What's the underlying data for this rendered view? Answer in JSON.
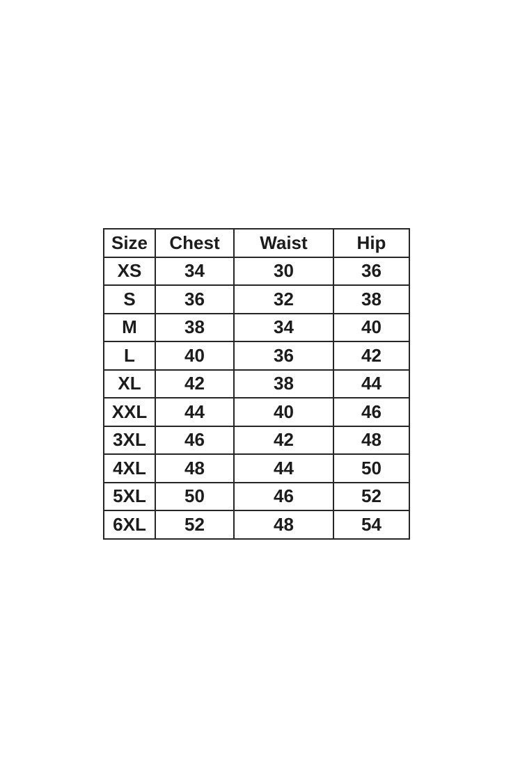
{
  "page": {
    "background_color": "#ffffff",
    "border_color": "#262626",
    "text_color": "#1c1c1c"
  },
  "sizing_table": {
    "columns": [
      "Size",
      "Chest",
      "Waist",
      "Hip"
    ],
    "rows": [
      {
        "size": "XS",
        "chest": "34",
        "waist": "30",
        "hip": "36"
      },
      {
        "size": "S",
        "chest": "36",
        "waist": "32",
        "hip": "38"
      },
      {
        "size": "M",
        "chest": "38",
        "waist": "34",
        "hip": "40"
      },
      {
        "size": "L",
        "chest": "40",
        "waist": "36",
        "hip": "42"
      },
      {
        "size": "XL",
        "chest": "42",
        "waist": "38",
        "hip": "44"
      },
      {
        "size": "XXL",
        "chest": "44",
        "waist": "40",
        "hip": "46"
      },
      {
        "size": "3XL",
        "chest": "46",
        "waist": "42",
        "hip": "48"
      },
      {
        "size": "4XL",
        "chest": "48",
        "waist": "44",
        "hip": "50"
      },
      {
        "size": "5XL",
        "chest": "50",
        "waist": "46",
        "hip": "52"
      },
      {
        "size": "6XL",
        "chest": "52",
        "waist": "48",
        "hip": "54"
      }
    ]
  },
  "chart_data": {
    "type": "table",
    "title": "",
    "columns": [
      "Size",
      "Chest",
      "Waist",
      "Hip"
    ],
    "rows": [
      [
        "XS",
        34,
        30,
        36
      ],
      [
        "S",
        36,
        32,
        38
      ],
      [
        "M",
        38,
        34,
        40
      ],
      [
        "L",
        40,
        36,
        42
      ],
      [
        "XL",
        42,
        38,
        44
      ],
      [
        "XXL",
        44,
        40,
        46
      ],
      [
        "3XL",
        46,
        42,
        48
      ],
      [
        "4XL",
        48,
        44,
        50
      ],
      [
        "5XL",
        50,
        46,
        52
      ],
      [
        "6XL",
        52,
        48,
        54
      ]
    ]
  }
}
